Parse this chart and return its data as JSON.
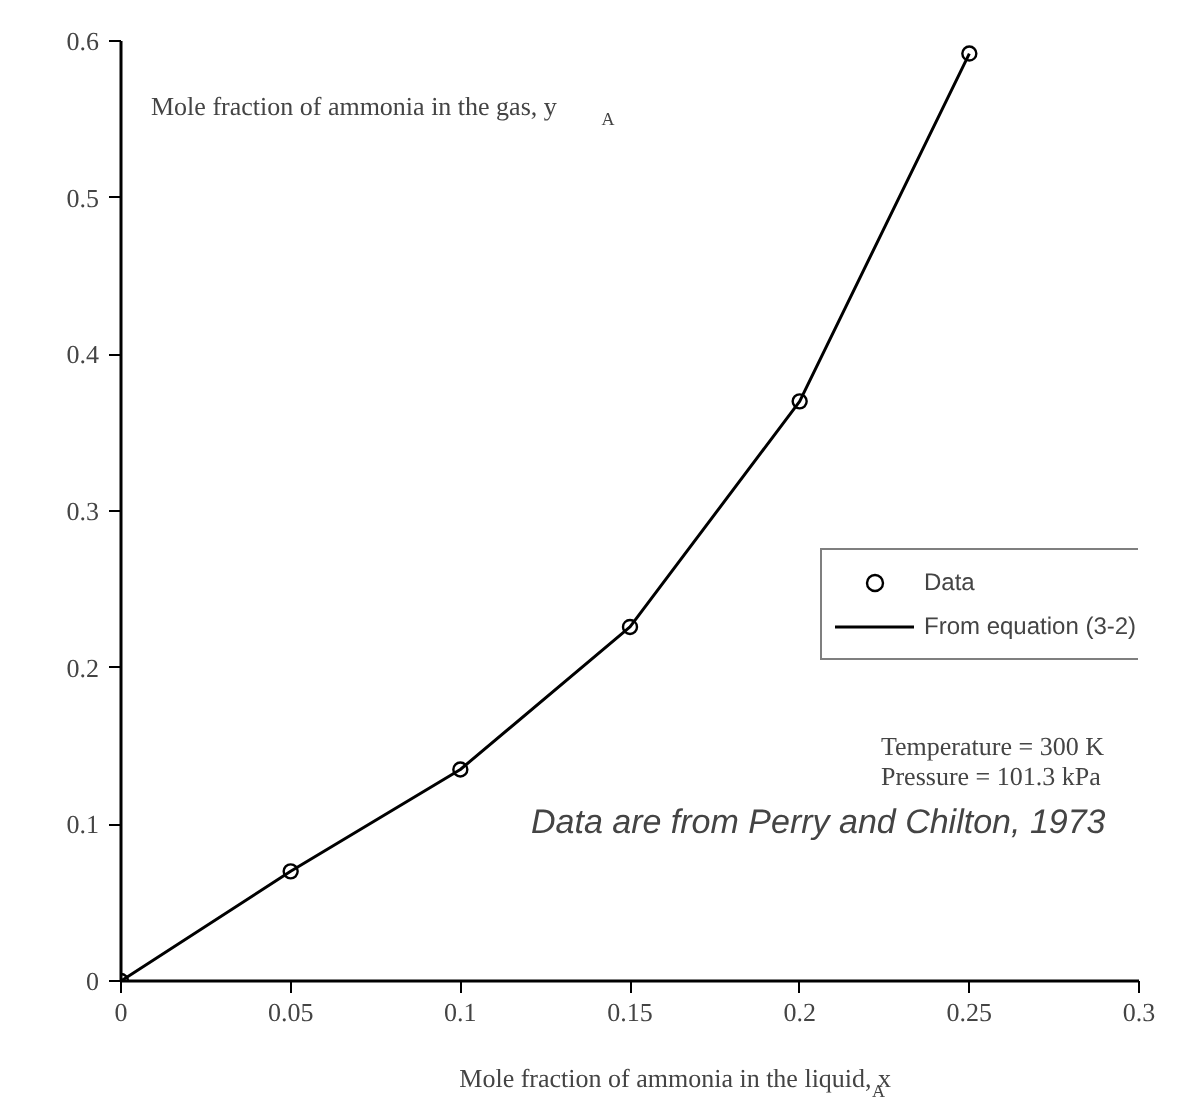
{
  "chart_data": {
    "type": "line",
    "xlabel": "Mole fraction of ammonia in the liquid, x$_{A}$",
    "ylabel": "Mole fraction of ammonia in the gas, y$_{A}$",
    "xlim": [
      0,
      0.3
    ],
    "ylim": [
      0,
      0.6
    ],
    "xticks": [
      0,
      0.05,
      0.1,
      0.15,
      0.2,
      0.25,
      0.3
    ],
    "yticks": [
      0,
      0.1,
      0.2,
      0.3,
      0.4,
      0.5,
      0.6
    ],
    "series": [
      {
        "name": "Data",
        "type": "scatter",
        "color": "#000000",
        "marker": "circle",
        "x": [
          0,
          0.05,
          0.1,
          0.15,
          0.2,
          0.25
        ],
        "values": [
          0,
          0.07,
          0.135,
          0.226,
          0.37,
          0.592
        ]
      },
      {
        "name": "From equation (3-2)",
        "type": "line",
        "color": "#000000",
        "line_style": "solid",
        "x": [
          0,
          0.05,
          0.1,
          0.15,
          0.2,
          0.25
        ],
        "values": [
          0,
          0.07,
          0.135,
          0.226,
          0.37,
          0.592
        ]
      }
    ],
    "annotations": [
      "Temperature = 300 K",
      "Pressure = 101.3 kPa",
      "Data are from Perry and Chilton, 1973"
    ],
    "legend": "right",
    "grid": false
  }
}
